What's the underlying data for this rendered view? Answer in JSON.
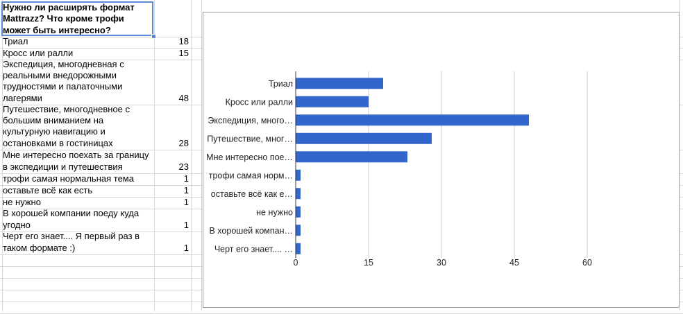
{
  "sheet": {
    "header": "Нужно ли расширять формат Mattrazz? Что кроме трофи может быть интересно?",
    "rows": [
      {
        "label": "Триал",
        "value": "18"
      },
      {
        "label": "Кросс или ралли",
        "value": "15"
      },
      {
        "label": "Экспедиция, многодневная с реальными внедорожными трудностями и палаточными лагерями",
        "value": "48"
      },
      {
        "label": "Путешествие, многодневное с большим вниманием на культурную навигацию и остановками в гостиницах",
        "value": "28"
      },
      {
        "label": "Мне интересно поехать за границу в экспедиции и путешествия",
        "value": "23"
      },
      {
        "label": "трофи самая нормальная тема",
        "value": "1"
      },
      {
        "label": "оставьте всё как есть",
        "value": "1"
      },
      {
        "label": "не нужно",
        "value": "1"
      },
      {
        "label": "В хорошей компании поеду куда угодно",
        "value": "1"
      },
      {
        "label": "Черт его знает.... Я первый раз в таком формате :)",
        "value": "1"
      }
    ]
  },
  "chart_data": {
    "type": "bar",
    "orientation": "horizontal",
    "categories": [
      "Триал",
      "Кросс или ралли",
      "Экспедиция, много…",
      "Путешествие, мног…",
      "Мне интересно пое…",
      "трофи самая норм…",
      "оставьте всё как е…",
      "не нужно",
      "В хорошей компан…",
      "Черт его знает.... …"
    ],
    "values": [
      18,
      15,
      48,
      28,
      23,
      1,
      1,
      1,
      1,
      1
    ],
    "xlim": [
      0,
      60
    ],
    "xticks": [
      "0",
      "15",
      "30",
      "45",
      "60"
    ],
    "grid": true,
    "legend": "none",
    "bar_color": "#3366cc"
  }
}
